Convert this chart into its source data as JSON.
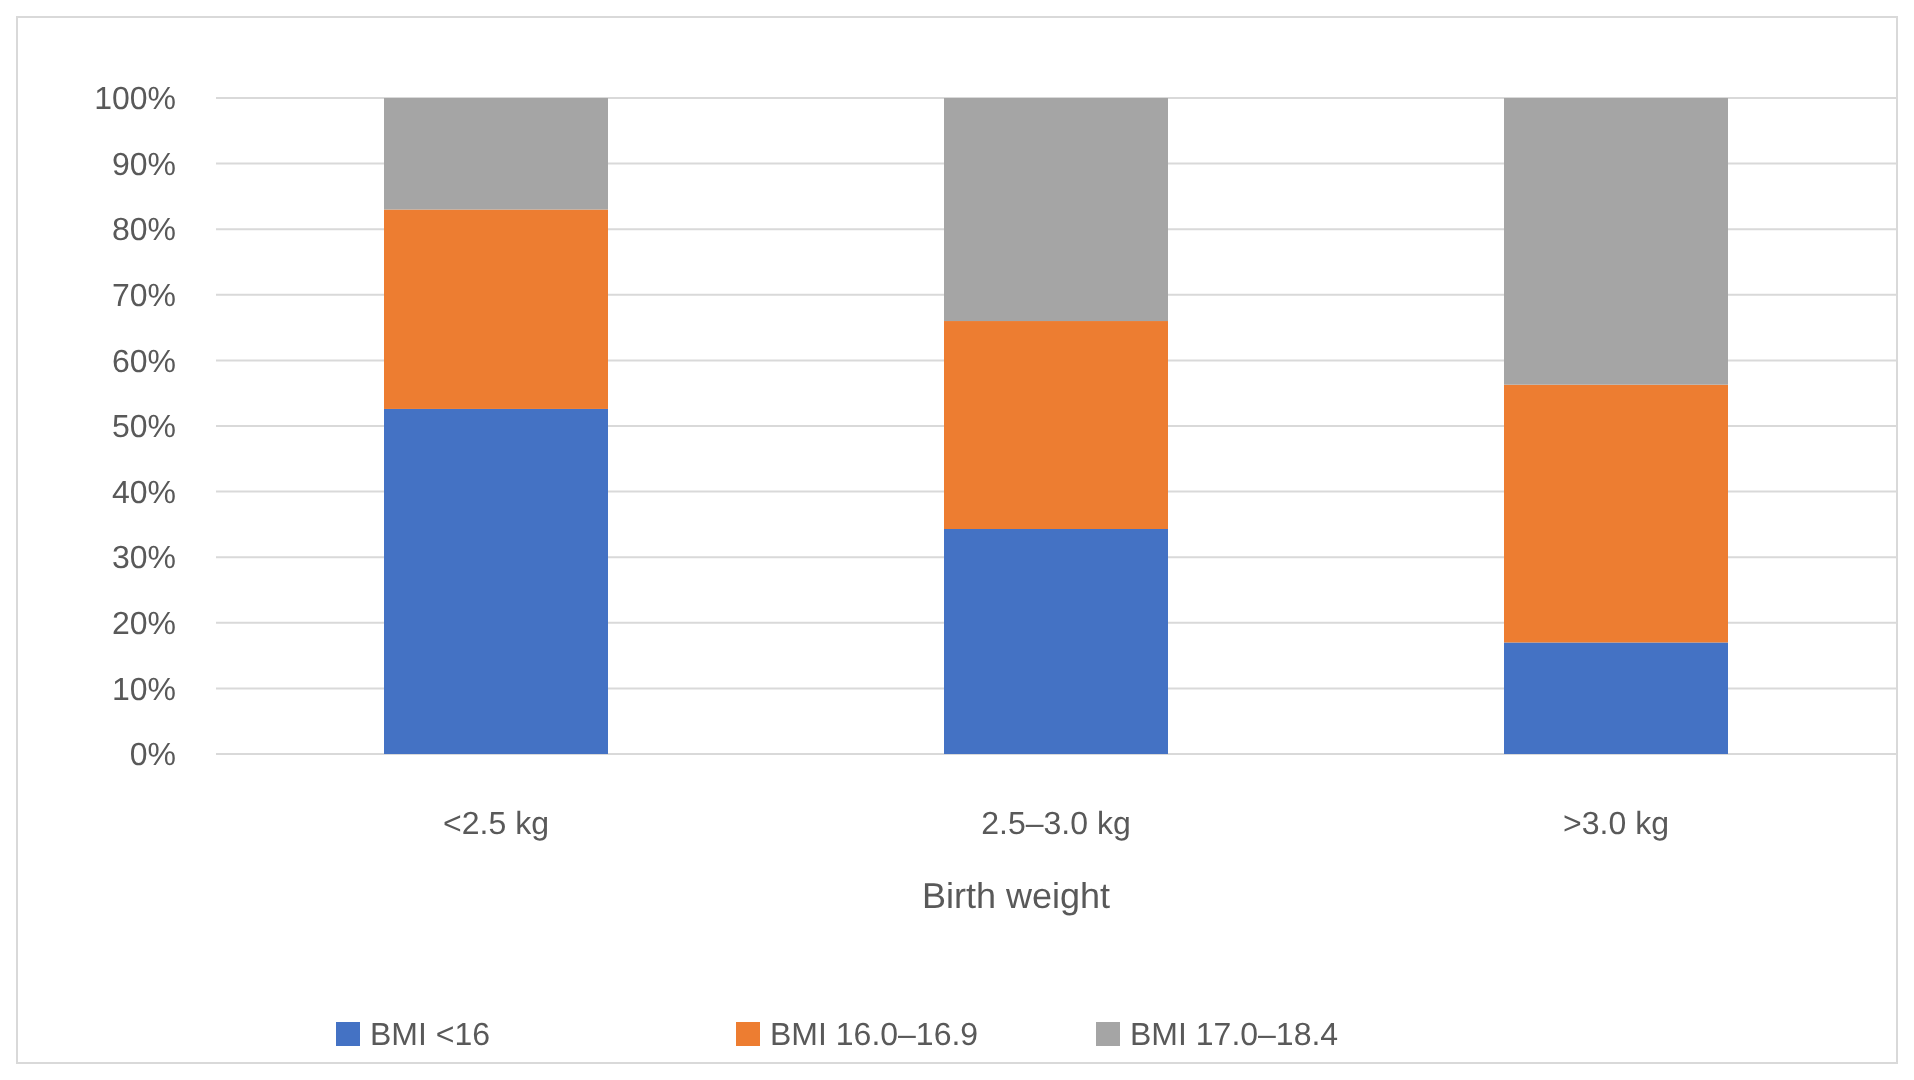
{
  "chart_data": {
    "type": "bar",
    "stacked": true,
    "xlabel": "Birth weight",
    "categories": [
      "<2.5 kg",
      "2.5–3.0 kg",
      ">3.0 kg"
    ],
    "series": [
      {
        "name": "BMI <16",
        "color": "#4472c4",
        "values": [
          52.6,
          34.3,
          17.0
        ]
      },
      {
        "name": "BMI 16.0–16.9",
        "color": "#ed7d31",
        "values": [
          30.4,
          31.7,
          39.3
        ]
      },
      {
        "name": "BMI 17.0–18.4",
        "color": "#a5a5a5",
        "values": [
          17.0,
          34.0,
          43.7
        ]
      }
    ],
    "ylim": [
      0,
      100
    ],
    "yticks": [
      {
        "value": 0,
        "label": "0%"
      },
      {
        "value": 10,
        "label": "10%"
      },
      {
        "value": 20,
        "label": "20%"
      },
      {
        "value": 30,
        "label": "30%"
      },
      {
        "value": 40,
        "label": "40%"
      },
      {
        "value": 50,
        "label": "50%"
      },
      {
        "value": 60,
        "label": "60%"
      },
      {
        "value": 70,
        "label": "70%"
      },
      {
        "value": 80,
        "label": "80%"
      },
      {
        "value": 90,
        "label": "90%"
      },
      {
        "value": 100,
        "label": "100%"
      }
    ],
    "grid": "y",
    "legend": "bottom"
  }
}
